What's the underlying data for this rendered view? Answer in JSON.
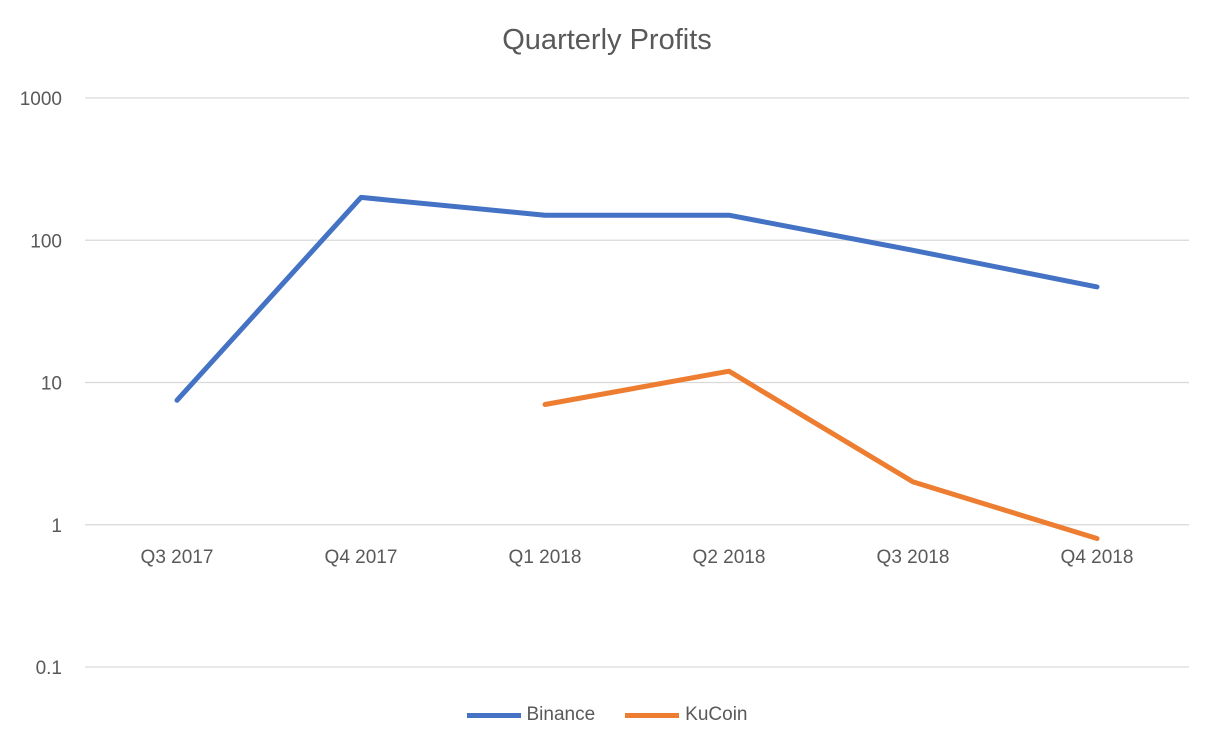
{
  "chart_data": {
    "type": "line",
    "title": "Quarterly Profits",
    "xlabel": "",
    "ylabel": "",
    "categories": [
      "Q3 2017",
      "Q4 2017",
      "Q1 2018",
      "Q2 2018",
      "Q3 2018",
      "Q4 2018"
    ],
    "yscale": "log",
    "ylim": [
      0.1,
      1000
    ],
    "yticks": [
      "0.1",
      "1",
      "10",
      "100",
      "1000"
    ],
    "grid": true,
    "legend_position": "bottom",
    "series": [
      {
        "name": "Binance",
        "color": "#4472C4",
        "values": [
          7.5,
          200,
          150,
          150,
          85,
          47
        ]
      },
      {
        "name": "KuCoin",
        "color": "#ED7D31",
        "values": [
          null,
          null,
          7,
          12,
          2,
          0.8
        ]
      }
    ]
  }
}
